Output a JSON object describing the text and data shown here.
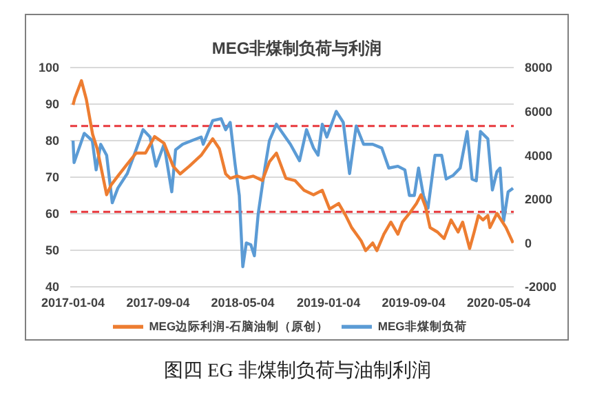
{
  "chart_data": {
    "type": "line",
    "title": "MEG非煤制负荷与利润",
    "annotations": [
      "图四 EG 非煤制负荷与油制利润"
    ],
    "xlim": [
      "2016-12-27",
      "2020-06-16"
    ],
    "xticks": [
      "2017-01-04",
      "2017-09-04",
      "2018-05-04",
      "2019-01-04",
      "2019-09-04",
      "2020-05-04"
    ],
    "ylim": [
      40,
      100
    ],
    "yticks": [
      40,
      50,
      60,
      70,
      80,
      90,
      100
    ],
    "y2lim": [
      -2000,
      8000
    ],
    "y2ticks": [
      -2000,
      0,
      2000,
      4000,
      6000,
      8000
    ],
    "grid": "y",
    "legend": "bottom",
    "marker": "none",
    "line_style": "solid",
    "ref_lines": [
      {
        "axis": "y",
        "value": 84,
        "color": "#e8383d",
        "line_style": "dashed"
      },
      {
        "axis": "y",
        "value": 60.5,
        "color": "#e8383d",
        "line_style": "dashed"
      }
    ],
    "series": [
      {
        "name": "MEG非煤制负荷",
        "color": "#5b9bd5",
        "x": [
          "2017-01-04",
          "2017-01-07",
          "2017-02-05",
          "2017-02-28",
          "2017-03-11",
          "2017-03-24",
          "2017-04-10",
          "2017-04-26",
          "2017-05-12",
          "2017-06-08",
          "2017-07-03",
          "2017-07-23",
          "2017-08-12",
          "2017-08-29",
          "2017-09-21",
          "2017-10-13",
          "2017-10-24",
          "2017-11-13",
          "2017-12-09",
          "2018-01-05",
          "2018-01-11",
          "2018-02-07",
          "2018-03-03",
          "2018-03-16",
          "2018-03-29",
          "2018-04-12",
          "2018-04-24",
          "2018-05-04",
          "2018-05-14",
          "2018-05-27",
          "2018-06-06",
          "2018-06-17",
          "2018-07-06",
          "2018-07-19",
          "2018-08-08",
          "2018-09-17",
          "2018-10-13",
          "2018-11-02",
          "2018-11-22",
          "2018-12-05",
          "2018-12-17",
          "2018-12-30",
          "2019-01-26",
          "2019-02-15",
          "2019-03-05",
          "2019-03-24",
          "2019-04-14",
          "2019-05-10",
          "2019-06-05",
          "2019-06-25",
          "2019-07-21",
          "2019-08-10",
          "2019-08-23",
          "2019-09-06",
          "2019-09-18",
          "2019-10-02",
          "2019-10-15",
          "2019-11-04",
          "2019-11-23",
          "2019-12-06",
          "2019-12-26",
          "2020-01-15",
          "2020-02-04",
          "2020-02-18",
          "2020-03-01",
          "2020-03-13",
          "2020-04-03",
          "2020-04-16",
          "2020-04-29",
          "2020-05-08",
          "2020-05-18",
          "2020-05-31",
          "2020-06-14"
        ],
        "values": [
          80,
          74,
          82,
          80,
          72,
          79,
          76,
          63,
          67,
          71,
          77.5,
          83,
          81,
          73,
          79,
          66,
          77.5,
          79,
          80,
          81,
          79,
          85.5,
          86,
          83,
          85,
          73.5,
          65,
          45.5,
          52,
          51.5,
          48.5,
          60,
          72.5,
          80,
          84.5,
          79,
          74.5,
          83,
          78,
          76,
          84.5,
          81,
          88,
          85,
          71,
          84,
          79,
          79,
          78,
          72.5,
          73,
          72,
          65,
          65,
          72.5,
          65,
          61.5,
          76,
          76,
          69.5,
          70.5,
          72.5,
          82.5,
          69.5,
          69,
          82.5,
          80.5,
          66.5,
          71.5,
          72.5,
          58,
          66,
          67
        ]
      },
      {
        "name": "MEG边际利润-石脑油制（原创）",
        "color": "#ed7d31",
        "axis": "y2",
        "x": [
          "2017-01-04",
          "2017-01-09",
          "2017-01-28",
          "2017-02-11",
          "2017-03-01",
          "2017-03-14",
          "2017-04-10",
          "2017-04-23",
          "2017-05-12",
          "2017-06-08",
          "2017-07-03",
          "2017-07-30",
          "2017-08-25",
          "2017-09-21",
          "2017-10-17",
          "2017-11-06",
          "2017-12-02",
          "2018-01-05",
          "2018-02-07",
          "2018-02-26",
          "2018-03-16",
          "2018-03-29",
          "2018-04-18",
          "2018-05-08",
          "2018-06-03",
          "2018-06-29",
          "2018-07-19",
          "2018-08-08",
          "2018-09-04",
          "2018-09-30",
          "2018-10-26",
          "2018-11-22",
          "2018-12-17",
          "2019-01-07",
          "2019-02-02",
          "2019-02-22",
          "2019-03-11",
          "2019-04-07",
          "2019-04-20",
          "2019-05-10",
          "2019-05-22",
          "2019-06-11",
          "2019-07-01",
          "2019-07-21",
          "2019-08-03",
          "2019-08-23",
          "2019-09-12",
          "2019-09-25",
          "2019-10-08",
          "2019-10-21",
          "2019-11-11",
          "2019-11-30",
          "2019-12-20",
          "2020-01-09",
          "2020-01-22",
          "2020-02-11",
          "2020-02-24",
          "2020-03-07",
          "2020-03-20",
          "2020-04-03",
          "2020-04-09",
          "2020-04-29",
          "2020-05-11",
          "2020-05-25",
          "2020-06-14"
        ],
        "values": [
          6300,
          6600,
          7400,
          6550,
          4950,
          4300,
          2200,
          2650,
          3050,
          3600,
          4100,
          4100,
          4850,
          4550,
          3500,
          3150,
          3500,
          4000,
          4750,
          4300,
          3150,
          2950,
          3050,
          2950,
          3050,
          2850,
          3700,
          4100,
          2950,
          2850,
          2400,
          2200,
          2400,
          1550,
          1800,
          1250,
          700,
          100,
          -350,
          0,
          -350,
          400,
          950,
          400,
          950,
          1350,
          1800,
          2200,
          1650,
          700,
          500,
          200,
          1050,
          500,
          950,
          -250,
          500,
          1250,
          1050,
          1250,
          700,
          1350,
          1050,
          700,
          0
        ]
      }
    ]
  }
}
